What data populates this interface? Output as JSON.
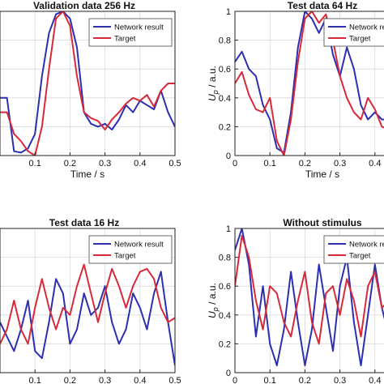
{
  "colors": {
    "network": "#2b2fb0",
    "target": "#d62a3a",
    "axis": "#222222",
    "grid": "#d9d9d9"
  },
  "chart_data": [
    {
      "type": "line",
      "title": "Validation data 256 Hz",
      "xlabel": "Time / s",
      "ylabel": "",
      "xlim": [
        0,
        0.5
      ],
      "ylim": [
        0,
        1
      ],
      "xticks": [
        0.1,
        0.2,
        0.3,
        0.4,
        0.5
      ],
      "xtick_labels": [
        "0.1",
        "0.2",
        "0.3",
        "0.4",
        "0.5"
      ],
      "yticks": [],
      "ytick_labels": [],
      "grid": true,
      "legend": "top-right",
      "series": [
        {
          "name": "Network result",
          "color": "#2b2fb0",
          "x": [
            0,
            0.02,
            0.04,
            0.06,
            0.08,
            0.1,
            0.12,
            0.14,
            0.16,
            0.18,
            0.2,
            0.22,
            0.24,
            0.26,
            0.28,
            0.3,
            0.32,
            0.34,
            0.36,
            0.38,
            0.4,
            0.42,
            0.44,
            0.46,
            0.48,
            0.5
          ],
          "y": [
            0.4,
            0.4,
            0.03,
            0.02,
            0.05,
            0.15,
            0.55,
            0.85,
            0.98,
            1.0,
            0.95,
            0.75,
            0.3,
            0.22,
            0.2,
            0.22,
            0.18,
            0.25,
            0.35,
            0.3,
            0.38,
            0.35,
            0.32,
            0.45,
            0.3,
            0.2
          ]
        },
        {
          "name": "Target",
          "color": "#d62a3a",
          "x": [
            0,
            0.02,
            0.04,
            0.06,
            0.08,
            0.1,
            0.12,
            0.14,
            0.16,
            0.18,
            0.2,
            0.22,
            0.24,
            0.26,
            0.28,
            0.3,
            0.32,
            0.34,
            0.36,
            0.38,
            0.4,
            0.42,
            0.44,
            0.46,
            0.48,
            0.5
          ],
          "y": [
            0.3,
            0.3,
            0.15,
            0.1,
            0.03,
            0.0,
            0.2,
            0.6,
            0.95,
            1.0,
            0.9,
            0.55,
            0.3,
            0.26,
            0.24,
            0.18,
            0.25,
            0.3,
            0.36,
            0.4,
            0.38,
            0.42,
            0.34,
            0.45,
            0.5,
            0.5
          ]
        }
      ]
    },
    {
      "type": "line",
      "title": "Test data 64 Hz",
      "xlabel": "Time / s",
      "ylabel": "U_p / a.u.",
      "xlim": [
        0,
        0.5
      ],
      "ylim": [
        0,
        1
      ],
      "xticks": [
        0,
        0.1,
        0.2,
        0.3,
        0.4
      ],
      "xtick_labels": [
        "0",
        "0.1",
        "0.2",
        "0.3",
        "0.4"
      ],
      "yticks": [
        0,
        0.2,
        0.4,
        0.6,
        0.8,
        1
      ],
      "ytick_labels": [
        "0",
        "0.2",
        "0.4",
        "0.6",
        "0.8",
        "1"
      ],
      "grid": true,
      "legend": "top-right",
      "series": [
        {
          "name": "Network result",
          "color": "#2b2fb0",
          "x": [
            0,
            0.02,
            0.04,
            0.06,
            0.08,
            0.1,
            0.12,
            0.14,
            0.16,
            0.18,
            0.2,
            0.22,
            0.24,
            0.26,
            0.28,
            0.3,
            0.32,
            0.34,
            0.36,
            0.38,
            0.4,
            0.42,
            0.44,
            0.46,
            0.48,
            0.5
          ],
          "y": [
            0.65,
            0.72,
            0.6,
            0.55,
            0.35,
            0.25,
            0.05,
            0.02,
            0.3,
            0.75,
            1.0,
            0.95,
            0.85,
            0.95,
            0.7,
            0.55,
            0.75,
            0.6,
            0.35,
            0.25,
            0.3,
            0.25,
            0.25,
            0.3,
            0.6,
            0.7
          ]
        },
        {
          "name": "Target",
          "color": "#d62a3a",
          "x": [
            0,
            0.02,
            0.04,
            0.06,
            0.08,
            0.1,
            0.12,
            0.14,
            0.16,
            0.18,
            0.2,
            0.22,
            0.24,
            0.26,
            0.28,
            0.3,
            0.32,
            0.34,
            0.36,
            0.38,
            0.4,
            0.42,
            0.44,
            0.46,
            0.48,
            0.5
          ],
          "y": [
            0.5,
            0.58,
            0.42,
            0.32,
            0.3,
            0.4,
            0.1,
            0.0,
            0.25,
            0.65,
            0.95,
            1.0,
            0.92,
            0.98,
            0.8,
            0.55,
            0.4,
            0.3,
            0.25,
            0.4,
            0.32,
            0.2,
            0.18,
            0.25,
            0.4,
            0.45
          ]
        }
      ]
    },
    {
      "type": "line",
      "title": "Test data 16 Hz",
      "xlabel": "Time / s",
      "ylabel": "",
      "xlim": [
        0,
        0.5
      ],
      "ylim": [
        0,
        1
      ],
      "xticks": [
        0.1,
        0.2,
        0.3,
        0.4,
        0.5
      ],
      "xtick_labels": [
        "0.1",
        "0.2",
        "0.3",
        "0.4",
        "0.5"
      ],
      "yticks": [],
      "ytick_labels": [],
      "grid": true,
      "legend": "top-right",
      "series": [
        {
          "name": "Network result",
          "color": "#2b2fb0",
          "x": [
            0,
            0.02,
            0.04,
            0.06,
            0.08,
            0.1,
            0.12,
            0.14,
            0.16,
            0.18,
            0.2,
            0.22,
            0.24,
            0.26,
            0.28,
            0.3,
            0.32,
            0.34,
            0.36,
            0.38,
            0.4,
            0.42,
            0.44,
            0.46,
            0.48,
            0.5
          ],
          "y": [
            0.35,
            0.25,
            0.15,
            0.3,
            0.5,
            0.15,
            0.1,
            0.35,
            0.65,
            0.55,
            0.2,
            0.3,
            0.55,
            0.4,
            0.45,
            0.6,
            0.35,
            0.2,
            0.3,
            0.55,
            0.45,
            0.3,
            0.55,
            0.7,
            0.35,
            0.05
          ]
        },
        {
          "name": "Target",
          "color": "#d62a3a",
          "x": [
            0,
            0.02,
            0.04,
            0.06,
            0.08,
            0.1,
            0.12,
            0.14,
            0.16,
            0.18,
            0.2,
            0.22,
            0.24,
            0.26,
            0.28,
            0.3,
            0.32,
            0.34,
            0.36,
            0.38,
            0.4,
            0.42,
            0.44,
            0.46,
            0.48,
            0.5
          ],
          "y": [
            0.2,
            0.3,
            0.5,
            0.3,
            0.2,
            0.45,
            0.65,
            0.45,
            0.3,
            0.45,
            0.4,
            0.6,
            0.75,
            0.55,
            0.35,
            0.55,
            0.72,
            0.6,
            0.45,
            0.6,
            0.7,
            0.72,
            0.65,
            0.45,
            0.35,
            0.38
          ]
        }
      ]
    },
    {
      "type": "line",
      "title": "Without stimulus",
      "xlabel": "Time / s",
      "ylabel": "U_p / a.u.",
      "xlim": [
        0,
        0.5
      ],
      "ylim": [
        0,
        1
      ],
      "xticks": [
        0,
        0.1,
        0.2,
        0.3,
        0.4
      ],
      "xtick_labels": [
        "0",
        "0.1",
        "0.2",
        "0.3",
        "0.4"
      ],
      "yticks": [
        0,
        0.2,
        0.4,
        0.6,
        0.8,
        1
      ],
      "ytick_labels": [
        "0",
        "0.2",
        "0.4",
        "0.6",
        "0.8",
        "1"
      ],
      "grid": true,
      "legend": "top-right",
      "series": [
        {
          "name": "Network result",
          "color": "#2b2fb0",
          "x": [
            0,
            0.02,
            0.04,
            0.06,
            0.08,
            0.1,
            0.12,
            0.14,
            0.16,
            0.18,
            0.2,
            0.22,
            0.24,
            0.26,
            0.28,
            0.3,
            0.32,
            0.34,
            0.36,
            0.38,
            0.4,
            0.42,
            0.44,
            0.46,
            0.48,
            0.5
          ],
          "y": [
            0.85,
            1.0,
            0.75,
            0.25,
            0.6,
            0.2,
            0.05,
            0.3,
            0.7,
            0.35,
            0.05,
            0.3,
            0.75,
            0.45,
            0.15,
            0.6,
            0.8,
            0.35,
            0.05,
            0.4,
            0.75,
            0.45,
            0.25,
            0.5,
            0.7,
            0.3
          ]
        },
        {
          "name": "Target",
          "color": "#d62a3a",
          "x": [
            0,
            0.02,
            0.04,
            0.06,
            0.08,
            0.1,
            0.12,
            0.14,
            0.16,
            0.18,
            0.2,
            0.22,
            0.24,
            0.26,
            0.28,
            0.3,
            0.32,
            0.34,
            0.36,
            0.38,
            0.4,
            0.42,
            0.44,
            0.46,
            0.48,
            0.5
          ],
          "y": [
            0.6,
            0.95,
            0.8,
            0.5,
            0.3,
            0.6,
            0.55,
            0.35,
            0.25,
            0.5,
            0.7,
            0.35,
            0.2,
            0.55,
            0.6,
            0.4,
            0.65,
            0.5,
            0.25,
            0.6,
            0.7,
            0.45,
            0.5,
            0.6,
            0.55,
            0.5
          ]
        }
      ]
    }
  ]
}
